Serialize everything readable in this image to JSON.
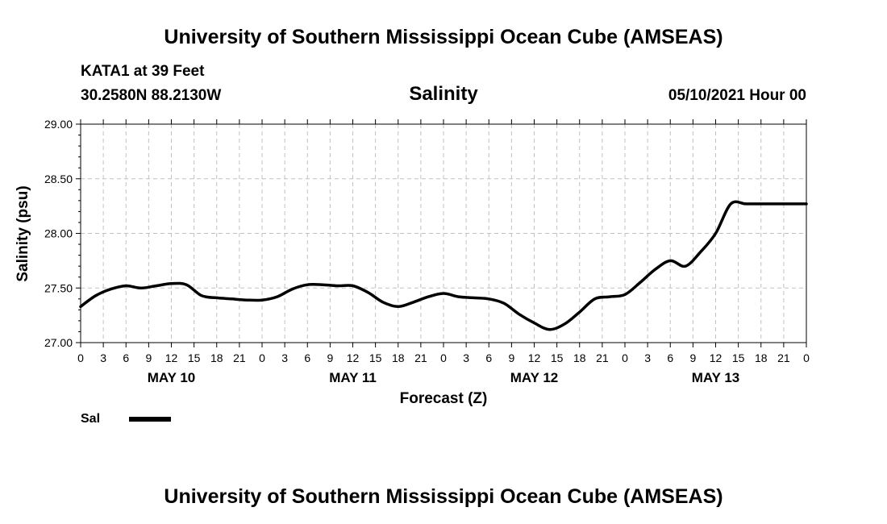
{
  "header": {
    "title": "University of Southern Mississippi Ocean Cube (AMSEAS)",
    "station": "KATA1 at 39 Feet",
    "coords": "30.2580N  88.2130W",
    "date": "05/10/2021 Hour 00",
    "footer": "University of Southern Mississippi Ocean Cube (AMSEAS)"
  },
  "chart_data": {
    "type": "line",
    "title": "Salinity",
    "xlabel": "Forecast (Z)",
    "ylabel": "Salinity (psu)",
    "ylim": [
      27.0,
      29.0
    ],
    "xlim": [
      0,
      96
    ],
    "grid": true,
    "yticks": [
      "27.00",
      "27.50",
      "28.00",
      "28.50",
      "29.00"
    ],
    "ytick_values": [
      27.0,
      27.5,
      28.0,
      28.5,
      29.0
    ],
    "xtick_labels": [
      "0",
      "3",
      "6",
      "9",
      "12",
      "15",
      "18",
      "21",
      "0",
      "3",
      "6",
      "9",
      "12",
      "15",
      "18",
      "21",
      "0",
      "3",
      "6",
      "9",
      "12",
      "15",
      "18",
      "21",
      "0",
      "3",
      "6",
      "9",
      "12",
      "15",
      "18",
      "21",
      "0"
    ],
    "day_labels": [
      {
        "label": "MAY 10",
        "hour": 12
      },
      {
        "label": "MAY 11",
        "hour": 36
      },
      {
        "label": "MAY 12",
        "hour": 60
      },
      {
        "label": "MAY 13",
        "hour": 84
      }
    ],
    "legend": {
      "label": "Sal",
      "placement": "bottom-left"
    },
    "series": [
      {
        "name": "Sal",
        "color": "#000000",
        "x": [
          0,
          2,
          4,
          6,
          8,
          10,
          12,
          14,
          16,
          18,
          20,
          22,
          24,
          26,
          28,
          30,
          32,
          34,
          36,
          38,
          40,
          42,
          44,
          46,
          48,
          50,
          52,
          54,
          56,
          58,
          60,
          62,
          64,
          66,
          68,
          70,
          72,
          74,
          76,
          78,
          80,
          82,
          84,
          86,
          88,
          90,
          92,
          94,
          96
        ],
        "y": [
          27.33,
          27.43,
          27.49,
          27.52,
          27.5,
          27.52,
          27.54,
          27.53,
          27.43,
          27.41,
          27.4,
          27.39,
          27.39,
          27.42,
          27.49,
          27.53,
          27.53,
          27.52,
          27.52,
          27.46,
          27.37,
          27.33,
          27.37,
          27.42,
          27.45,
          27.42,
          27.41,
          27.4,
          27.36,
          27.26,
          27.18,
          27.12,
          27.17,
          27.28,
          27.4,
          27.42,
          27.44,
          27.55,
          27.67,
          27.75,
          27.7,
          27.83,
          28.0,
          28.27,
          28.27,
          28.27,
          28.27,
          28.27,
          28.27
        ]
      }
    ]
  }
}
